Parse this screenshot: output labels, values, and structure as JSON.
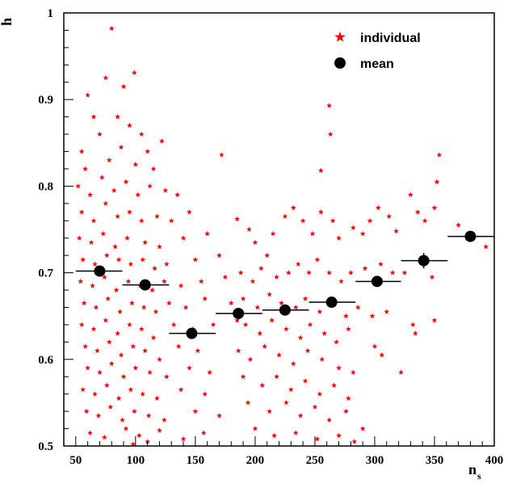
{
  "chart_data": {
    "type": "scatter",
    "xlabel": "n",
    "xlabel_subscript": "s",
    "ylabel": "h",
    "xlim": [
      40,
      400
    ],
    "ylim": [
      0.5,
      1.0
    ],
    "x_ticks": [
      50,
      100,
      150,
      200,
      250,
      300,
      350,
      400
    ],
    "y_ticks": [
      0.5,
      0.6,
      0.7,
      0.8,
      0.9,
      1.0
    ],
    "x_tick_labels": [
      "50",
      "100",
      "150",
      "200",
      "250",
      "300",
      "350",
      "400"
    ],
    "y_tick_labels": [
      "0.5",
      "0.6",
      "0.7",
      "0.8",
      "0.9",
      "1"
    ],
    "grid": false,
    "legend_position": "top-right",
    "legend": [
      {
        "label": "individual",
        "marker": "star",
        "color": "#ff0000"
      },
      {
        "label": "mean",
        "marker": "circle",
        "color": "#000000"
      }
    ],
    "series": [
      {
        "name": "individual",
        "marker": "star",
        "color": "#ff0000",
        "points": [
          [
            80,
            0.982
          ],
          [
            262,
            0.893
          ],
          [
            263,
            0.86
          ],
          [
            172,
            0.836
          ],
          [
            354,
            0.836
          ],
          [
            255,
            0.818
          ],
          [
            99,
            0.931
          ],
          [
            90,
            0.915
          ],
          [
            75,
            0.925
          ],
          [
            60,
            0.905
          ],
          [
            85,
            0.88
          ],
          [
            105,
            0.86
          ],
          [
            65,
            0.88
          ],
          [
            70,
            0.86
          ],
          [
            95,
            0.87
          ],
          [
            110,
            0.84
          ],
          [
            122,
            0.852
          ],
          [
            55,
            0.84
          ],
          [
            58,
            0.82
          ],
          [
            78,
            0.83
          ],
          [
            88,
            0.845
          ],
          [
            100,
            0.825
          ],
          [
            115,
            0.82
          ],
          [
            52,
            0.8
          ],
          [
            62,
            0.79
          ],
          [
            72,
            0.81
          ],
          [
            82,
            0.795
          ],
          [
            92,
            0.805
          ],
          [
            102,
            0.79
          ],
          [
            112,
            0.8
          ],
          [
            125,
            0.795
          ],
          [
            135,
            0.79
          ],
          [
            55,
            0.77
          ],
          [
            65,
            0.76
          ],
          [
            75,
            0.78
          ],
          [
            85,
            0.765
          ],
          [
            95,
            0.77
          ],
          [
            105,
            0.76
          ],
          [
            118,
            0.765
          ],
          [
            130,
            0.76
          ],
          [
            145,
            0.77
          ],
          [
            53,
            0.74
          ],
          [
            63,
            0.735
          ],
          [
            73,
            0.745
          ],
          [
            83,
            0.73
          ],
          [
            93,
            0.74
          ],
          [
            108,
            0.735
          ],
          [
            120,
            0.73
          ],
          [
            140,
            0.74
          ],
          [
            160,
            0.745
          ],
          [
            56,
            0.715
          ],
          [
            66,
            0.71
          ],
          [
            76,
            0.72
          ],
          [
            86,
            0.715
          ],
          [
            96,
            0.71
          ],
          [
            106,
            0.715
          ],
          [
            116,
            0.705
          ],
          [
            126,
            0.71
          ],
          [
            150,
            0.715
          ],
          [
            170,
            0.72
          ],
          [
            54,
            0.69
          ],
          [
            64,
            0.685
          ],
          [
            74,
            0.695
          ],
          [
            84,
            0.68
          ],
          [
            94,
            0.69
          ],
          [
            104,
            0.685
          ],
          [
            114,
            0.68
          ],
          [
            124,
            0.69
          ],
          [
            138,
            0.685
          ],
          [
            155,
            0.69
          ],
          [
            175,
            0.695
          ],
          [
            57,
            0.665
          ],
          [
            67,
            0.66
          ],
          [
            77,
            0.67
          ],
          [
            87,
            0.655
          ],
          [
            97,
            0.665
          ],
          [
            107,
            0.66
          ],
          [
            117,
            0.655
          ],
          [
            128,
            0.665
          ],
          [
            142,
            0.66
          ],
          [
            158,
            0.67
          ],
          [
            180,
            0.665
          ],
          [
            55,
            0.64
          ],
          [
            65,
            0.635
          ],
          [
            75,
            0.645
          ],
          [
            85,
            0.63
          ],
          [
            95,
            0.64
          ],
          [
            105,
            0.635
          ],
          [
            115,
            0.625
          ],
          [
            132,
            0.64
          ],
          [
            148,
            0.635
          ],
          [
            165,
            0.64
          ],
          [
            185,
            0.645
          ],
          [
            58,
            0.615
          ],
          [
            68,
            0.61
          ],
          [
            78,
            0.62
          ],
          [
            88,
            0.605
          ],
          [
            98,
            0.615
          ],
          [
            108,
            0.61
          ],
          [
            120,
            0.6
          ],
          [
            136,
            0.615
          ],
          [
            152,
            0.61
          ],
          [
            60,
            0.59
          ],
          [
            70,
            0.585
          ],
          [
            80,
            0.595
          ],
          [
            90,
            0.58
          ],
          [
            100,
            0.59
          ],
          [
            112,
            0.585
          ],
          [
            126,
            0.58
          ],
          [
            145,
            0.59
          ],
          [
            162,
            0.585
          ],
          [
            56,
            0.565
          ],
          [
            66,
            0.56
          ],
          [
            76,
            0.57
          ],
          [
            86,
            0.555
          ],
          [
            96,
            0.565
          ],
          [
            106,
            0.56
          ],
          [
            118,
            0.555
          ],
          [
            138,
            0.565
          ],
          [
            158,
            0.56
          ],
          [
            59,
            0.54
          ],
          [
            69,
            0.535
          ],
          [
            79,
            0.545
          ],
          [
            89,
            0.53
          ],
          [
            99,
            0.54
          ],
          [
            111,
            0.535
          ],
          [
            124,
            0.53
          ],
          [
            150,
            0.54
          ],
          [
            170,
            0.535
          ],
          [
            62,
            0.515
          ],
          [
            74,
            0.51
          ],
          [
            92,
            0.52
          ],
          [
            103,
            0.512
          ],
          [
            120,
            0.518
          ],
          [
            157,
            0.515
          ],
          [
            98,
            0.502
          ],
          [
            110,
            0.505
          ],
          [
            140,
            0.508
          ],
          [
            185,
            0.762
          ],
          [
            195,
            0.75
          ],
          [
            200,
            0.735
          ],
          [
            210,
            0.72
          ],
          [
            215,
            0.745
          ],
          [
            225,
            0.765
          ],
          [
            232,
            0.775
          ],
          [
            240,
            0.76
          ],
          [
            248,
            0.745
          ],
          [
            255,
            0.77
          ],
          [
            265,
            0.76
          ],
          [
            270,
            0.74
          ],
          [
            282,
            0.752
          ],
          [
            290,
            0.745
          ],
          [
            296,
            0.76
          ],
          [
            303,
            0.775
          ],
          [
            312,
            0.765
          ],
          [
            318,
            0.748
          ],
          [
            330,
            0.79
          ],
          [
            336,
            0.77
          ],
          [
            342,
            0.76
          ],
          [
            350,
            0.775
          ],
          [
            352,
            0.805
          ],
          [
            370,
            0.755
          ],
          [
            393,
            0.73
          ],
          [
            188,
            0.7
          ],
          [
            198,
            0.69
          ],
          [
            205,
            0.705
          ],
          [
            218,
            0.695
          ],
          [
            228,
            0.7
          ],
          [
            236,
            0.71
          ],
          [
            245,
            0.7
          ],
          [
            252,
            0.715
          ],
          [
            262,
            0.7
          ],
          [
            272,
            0.69
          ],
          [
            280,
            0.7
          ],
          [
            292,
            0.705
          ],
          [
            305,
            0.71
          ],
          [
            315,
            0.7
          ],
          [
            325,
            0.7
          ],
          [
            348,
            0.695
          ],
          [
            190,
            0.67
          ],
          [
            202,
            0.66
          ],
          [
            212,
            0.675
          ],
          [
            222,
            0.665
          ],
          [
            234,
            0.66
          ],
          [
            242,
            0.67
          ],
          [
            254,
            0.655
          ],
          [
            266,
            0.665
          ],
          [
            276,
            0.65
          ],
          [
            286,
            0.66
          ],
          [
            298,
            0.65
          ],
          [
            310,
            0.655
          ],
          [
            332,
            0.64
          ],
          [
            350,
            0.645
          ],
          [
            192,
            0.64
          ],
          [
            204,
            0.63
          ],
          [
            214,
            0.645
          ],
          [
            226,
            0.635
          ],
          [
            238,
            0.625
          ],
          [
            246,
            0.64
          ],
          [
            258,
            0.63
          ],
          [
            268,
            0.62
          ],
          [
            278,
            0.635
          ],
          [
            300,
            0.615
          ],
          [
            334,
            0.63
          ],
          [
            186,
            0.61
          ],
          [
            196,
            0.6
          ],
          [
            208,
            0.615
          ],
          [
            220,
            0.605
          ],
          [
            232,
            0.595
          ],
          [
            244,
            0.61
          ],
          [
            256,
            0.6
          ],
          [
            270,
            0.59
          ],
          [
            282,
            0.585
          ],
          [
            306,
            0.605
          ],
          [
            322,
            0.585
          ],
          [
            190,
            0.58
          ],
          [
            206,
            0.57
          ],
          [
            218,
            0.58
          ],
          [
            230,
            0.565
          ],
          [
            242,
            0.575
          ],
          [
            254,
            0.56
          ],
          [
            266,
            0.57
          ],
          [
            278,
            0.555
          ],
          [
            194,
            0.55
          ],
          [
            212,
            0.54
          ],
          [
            226,
            0.55
          ],
          [
            238,
            0.535
          ],
          [
            250,
            0.545
          ],
          [
            262,
            0.53
          ],
          [
            276,
            0.54
          ],
          [
            290,
            0.52
          ],
          [
            200,
            0.52
          ],
          [
            216,
            0.512
          ],
          [
            234,
            0.515
          ],
          [
            252,
            0.508
          ],
          [
            270,
            0.512
          ],
          [
            283,
            0.505
          ]
        ]
      },
      {
        "name": "mean",
        "marker": "circle",
        "color": "#000000",
        "points": [
          {
            "x": 70,
            "y": 0.702,
            "xerr": [
              50,
              89
            ],
            "yerr": 0.004
          },
          {
            "x": 108,
            "y": 0.686,
            "xerr": [
              89,
              128
            ],
            "yerr": 0.004
          },
          {
            "x": 147,
            "y": 0.63,
            "xerr": [
              128,
              167
            ],
            "yerr": 0.004
          },
          {
            "x": 186,
            "y": 0.653,
            "xerr": [
              167,
              206
            ],
            "yerr": 0.004
          },
          {
            "x": 225,
            "y": 0.657,
            "xerr": [
              206,
              245
            ],
            "yerr": 0.004
          },
          {
            "x": 264,
            "y": 0.666,
            "xerr": [
              245,
              284
            ],
            "yerr": 0.004
          },
          {
            "x": 302,
            "y": 0.69,
            "xerr": [
              284,
              322
            ],
            "yerr": 0.004
          },
          {
            "x": 341,
            "y": 0.714,
            "xerr": [
              322,
              361
            ],
            "yerr": 0.009
          },
          {
            "x": 380,
            "y": 0.742,
            "xerr": [
              361,
              400
            ],
            "yerr": 0.004
          }
        ]
      }
    ]
  }
}
